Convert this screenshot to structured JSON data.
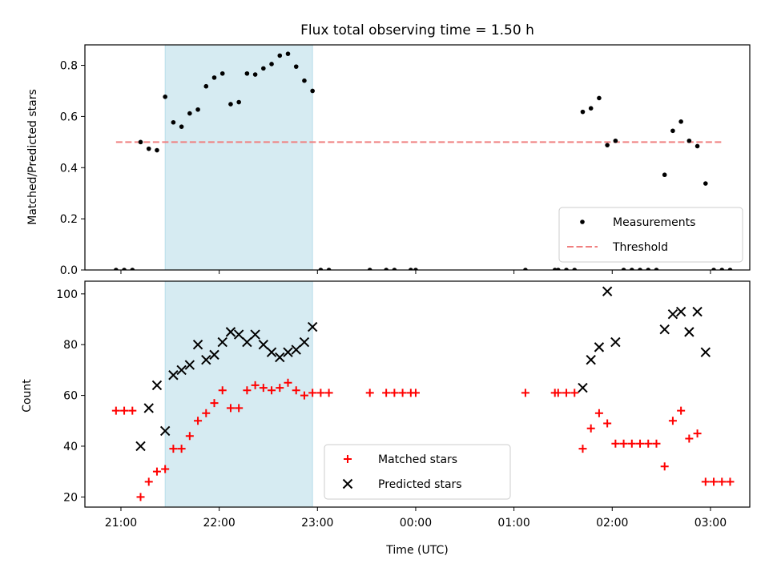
{
  "chart_data": [
    {
      "type": "scatter",
      "title": "Flux total observing time = 1.50 h",
      "ylabel": "Matched/Predicted stars",
      "xlabel": "",
      "ylim": [
        0,
        0.88
      ],
      "yticks": [
        0.0,
        0.2,
        0.4,
        0.6,
        0.8
      ],
      "ytick_labels": [
        "0.0",
        "0.2",
        "0.4",
        "0.6",
        "0.8"
      ],
      "highlight_span": {
        "start": "21:27",
        "end": "22:57",
        "color": "#add8e6"
      },
      "threshold": {
        "value": 0.5,
        "x_start": "20:57",
        "x_end": "03:07",
        "color": "#f08080",
        "style": "dashed"
      },
      "legend": {
        "placement": "lower right",
        "entries": [
          "Measurements",
          "Threshold"
        ]
      },
      "series": [
        {
          "name": "Measurements",
          "color": "#000000",
          "marker": "dot",
          "points": [
            [
              "20:57",
              0.0
            ],
            [
              "21:02",
              0.0
            ],
            [
              "21:07",
              0.0
            ],
            [
              "21:12",
              0.5
            ],
            [
              "21:17",
              0.474
            ],
            [
              "21:22",
              0.468
            ],
            [
              "21:27",
              0.677
            ],
            [
              "21:32",
              0.577
            ],
            [
              "21:37",
              0.56
            ],
            [
              "21:42",
              0.612
            ],
            [
              "21:47",
              0.627
            ],
            [
              "21:52",
              0.718
            ],
            [
              "21:57",
              0.752
            ],
            [
              "22:02",
              0.768
            ],
            [
              "22:07",
              0.648
            ],
            [
              "22:12",
              0.656
            ],
            [
              "22:17",
              0.768
            ],
            [
              "22:22",
              0.764
            ],
            [
              "22:27",
              0.788
            ],
            [
              "22:32",
              0.805
            ],
            [
              "22:37",
              0.838
            ],
            [
              "22:42",
              0.845
            ],
            [
              "22:47",
              0.795
            ],
            [
              "22:52",
              0.74
            ],
            [
              "22:57",
              0.7
            ],
            [
              "23:02",
              0.0
            ],
            [
              "23:07",
              0.0
            ],
            [
              "23:32",
              0.0
            ],
            [
              "23:42",
              0.0
            ],
            [
              "23:47",
              0.0
            ],
            [
              "23:57",
              0.0
            ],
            [
              "00:00",
              0.0
            ],
            [
              "01:07",
              0.0
            ],
            [
              "01:25",
              0.0
            ],
            [
              "01:27",
              0.0
            ],
            [
              "01:32",
              0.0
            ],
            [
              "01:37",
              0.0
            ],
            [
              "01:42",
              0.618
            ],
            [
              "01:47",
              0.632
            ],
            [
              "01:52",
              0.672
            ],
            [
              "01:57",
              0.488
            ],
            [
              "02:02",
              0.505
            ],
            [
              "02:07",
              0.0
            ],
            [
              "02:12",
              0.0
            ],
            [
              "02:17",
              0.0
            ],
            [
              "02:22",
              0.0
            ],
            [
              "02:27",
              0.0
            ],
            [
              "02:32",
              0.372
            ],
            [
              "02:37",
              0.544
            ],
            [
              "02:42",
              0.58
            ],
            [
              "02:47",
              0.505
            ],
            [
              "02:52",
              0.484
            ],
            [
              "02:57",
              0.338
            ],
            [
              "03:02",
              0.0
            ],
            [
              "03:07",
              0.0
            ],
            [
              "03:12",
              0.0
            ]
          ]
        }
      ]
    },
    {
      "type": "scatter",
      "xlabel": "Time (UTC)",
      "ylabel": "Count",
      "ylim": [
        16,
        105
      ],
      "yticks": [
        20,
        40,
        60,
        80,
        100
      ],
      "ytick_labels": [
        "20",
        "40",
        "60",
        "80",
        "100"
      ],
      "xticks": [
        "21:00",
        "22:00",
        "23:00",
        "00:00",
        "01:00",
        "02:00",
        "03:00"
      ],
      "xtick_labels": [
        "21:00",
        "22:00",
        "23:00",
        "00:00",
        "01:00",
        "02:00",
        "03:00"
      ],
      "xlim": [
        "20:38",
        "03:24"
      ],
      "highlight_span": {
        "start": "21:27",
        "end": "22:57",
        "color": "#add8e6"
      },
      "legend": {
        "placement": "lower center",
        "entries": [
          "Matched stars",
          "Predicted stars"
        ]
      },
      "series": [
        {
          "name": "Matched stars",
          "color": "#ff0000",
          "marker": "plus",
          "points": [
            [
              "20:57",
              54
            ],
            [
              "21:02",
              54
            ],
            [
              "21:07",
              54
            ],
            [
              "21:12",
              20
            ],
            [
              "21:17",
              26
            ],
            [
              "21:22",
              30
            ],
            [
              "21:27",
              31
            ],
            [
              "21:32",
              39
            ],
            [
              "21:37",
              39
            ],
            [
              "21:42",
              44
            ],
            [
              "21:47",
              50
            ],
            [
              "21:52",
              53
            ],
            [
              "21:57",
              57
            ],
            [
              "22:02",
              62
            ],
            [
              "22:07",
              55
            ],
            [
              "22:12",
              55
            ],
            [
              "22:17",
              62
            ],
            [
              "22:22",
              64
            ],
            [
              "22:27",
              63
            ],
            [
              "22:32",
              62
            ],
            [
              "22:37",
              63
            ],
            [
              "22:42",
              65
            ],
            [
              "22:47",
              62
            ],
            [
              "22:52",
              60
            ],
            [
              "22:57",
              61
            ],
            [
              "23:02",
              61
            ],
            [
              "23:07",
              61
            ],
            [
              "23:32",
              61
            ],
            [
              "23:42",
              61
            ],
            [
              "23:47",
              61
            ],
            [
              "23:52",
              61
            ],
            [
              "23:57",
              61
            ],
            [
              "00:00",
              61
            ],
            [
              "01:07",
              61
            ],
            [
              "01:25",
              61
            ],
            [
              "01:27",
              61
            ],
            [
              "01:32",
              61
            ],
            [
              "01:37",
              61
            ],
            [
              "01:42",
              39
            ],
            [
              "01:47",
              47
            ],
            [
              "01:52",
              53
            ],
            [
              "01:57",
              49
            ],
            [
              "02:02",
              41
            ],
            [
              "02:07",
              41
            ],
            [
              "02:12",
              41
            ],
            [
              "02:17",
              41
            ],
            [
              "02:22",
              41
            ],
            [
              "02:27",
              41
            ],
            [
              "02:32",
              32
            ],
            [
              "02:37",
              50
            ],
            [
              "02:42",
              54
            ],
            [
              "02:47",
              43
            ],
            [
              "02:52",
              45
            ],
            [
              "02:57",
              26
            ],
            [
              "03:02",
              26
            ],
            [
              "03:07",
              26
            ],
            [
              "03:12",
              26
            ]
          ]
        },
        {
          "name": "Predicted stars",
          "color": "#000000",
          "marker": "x",
          "points": [
            [
              "21:12",
              40
            ],
            [
              "21:17",
              55
            ],
            [
              "21:22",
              64
            ],
            [
              "21:27",
              46
            ],
            [
              "21:32",
              68
            ],
            [
              "21:37",
              70
            ],
            [
              "21:42",
              72
            ],
            [
              "21:47",
              80
            ],
            [
              "21:52",
              74
            ],
            [
              "21:57",
              76
            ],
            [
              "22:02",
              81
            ],
            [
              "22:07",
              85
            ],
            [
              "22:12",
              84
            ],
            [
              "22:17",
              81
            ],
            [
              "22:22",
              84
            ],
            [
              "22:27",
              80
            ],
            [
              "22:32",
              77
            ],
            [
              "22:37",
              75
            ],
            [
              "22:42",
              77
            ],
            [
              "22:47",
              78
            ],
            [
              "22:52",
              81
            ],
            [
              "22:57",
              87
            ],
            [
              "01:42",
              63
            ],
            [
              "01:47",
              74
            ],
            [
              "01:52",
              79
            ],
            [
              "01:57",
              101
            ],
            [
              "02:02",
              81
            ],
            [
              "02:32",
              86
            ],
            [
              "02:37",
              92
            ],
            [
              "02:42",
              93
            ],
            [
              "02:47",
              85
            ],
            [
              "02:52",
              93
            ],
            [
              "02:57",
              77
            ]
          ]
        }
      ]
    }
  ]
}
